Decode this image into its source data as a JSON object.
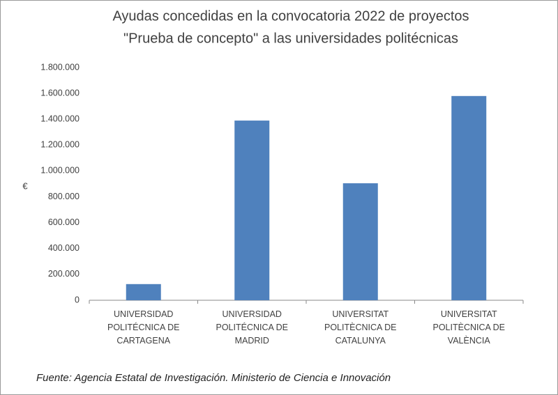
{
  "chart_data": {
    "type": "bar",
    "title": [
      "Ayudas concedidas en la convocatoria 2022 de proyectos",
      "\"Prueba de concepto\" a las universidades politécnicas"
    ],
    "y_label": "€",
    "categories": [
      "UNIVERSIDAD POLITÉCNICA DE CARTAGENA",
      "UNIVERSIDAD POLITÉCNICA DE MADRID",
      "UNIVERSITAT POLITÈCNICA DE CATALUNYA",
      "UNIVERSITAT POLITÈCNICA DE VALÈNCIA"
    ],
    "values": [
      125000,
      1390000,
      905000,
      1580000
    ],
    "color": "#4f81bd",
    "ylim": [
      0,
      1800000
    ],
    "yticks": [
      0,
      {
        "value": 200000,
        "label": "200.000"
      },
      {
        "value": 400000,
        "label": "400.000"
      },
      {
        "value": 600000,
        "label": "600.000"
      },
      {
        "value": 800000,
        "label": "800.000"
      },
      {
        "value": 1000000,
        "label": "1.000.000"
      },
      {
        "value": 1200000,
        "label": "1.200.000"
      },
      {
        "value": 1400000,
        "label": "1.400.000"
      },
      {
        "value": 1600000,
        "label": "1.600.000"
      },
      {
        "value": 1800000,
        "label": "1.800.000"
      }
    ],
    "grid": false,
    "source": "Fuente: Agencia Estatal de Investigación. Ministerio de Ciencia e Innovación"
  }
}
